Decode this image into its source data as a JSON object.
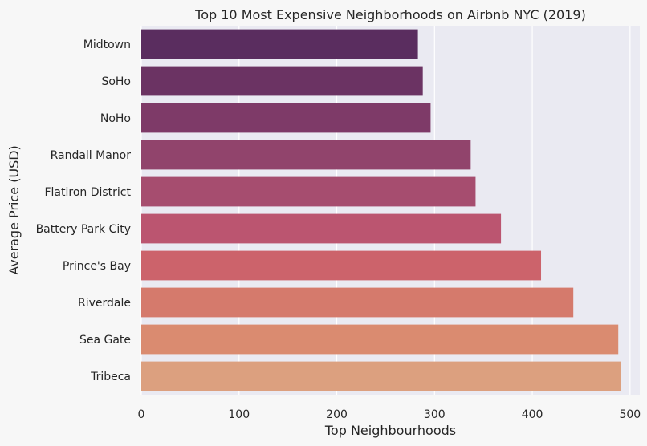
{
  "chart_data": {
    "type": "bar",
    "orientation": "horizontal",
    "title": "Top 10 Most Expensive Neighborhoods on Airbnb NYC (2019)",
    "xlabel": "Top Neighbourhoods",
    "ylabel": "Average Price (USD)",
    "categories": [
      "Midtown",
      "SoHo",
      "NoHo",
      "Randall Manor",
      "Flatiron District",
      "Battery Park City",
      "Prince's Bay",
      "Riverdale",
      "Sea Gate",
      "Tribeca"
    ],
    "values": [
      283,
      288,
      296,
      337,
      342,
      368,
      409,
      442,
      488,
      491
    ],
    "xlim": [
      0,
      510
    ],
    "xticks": [
      0,
      100,
      200,
      300,
      400,
      500
    ],
    "grid": true,
    "colors": [
      "#5a2d5f",
      "#6b3363",
      "#7e3a68",
      "#91446c",
      "#a64d6f",
      "#bb5570",
      "#cc636b",
      "#d57a6c",
      "#da8b70",
      "#dca07f"
    ],
    "background": "#eaeaf2",
    "page_background": "#f7f7f7"
  }
}
